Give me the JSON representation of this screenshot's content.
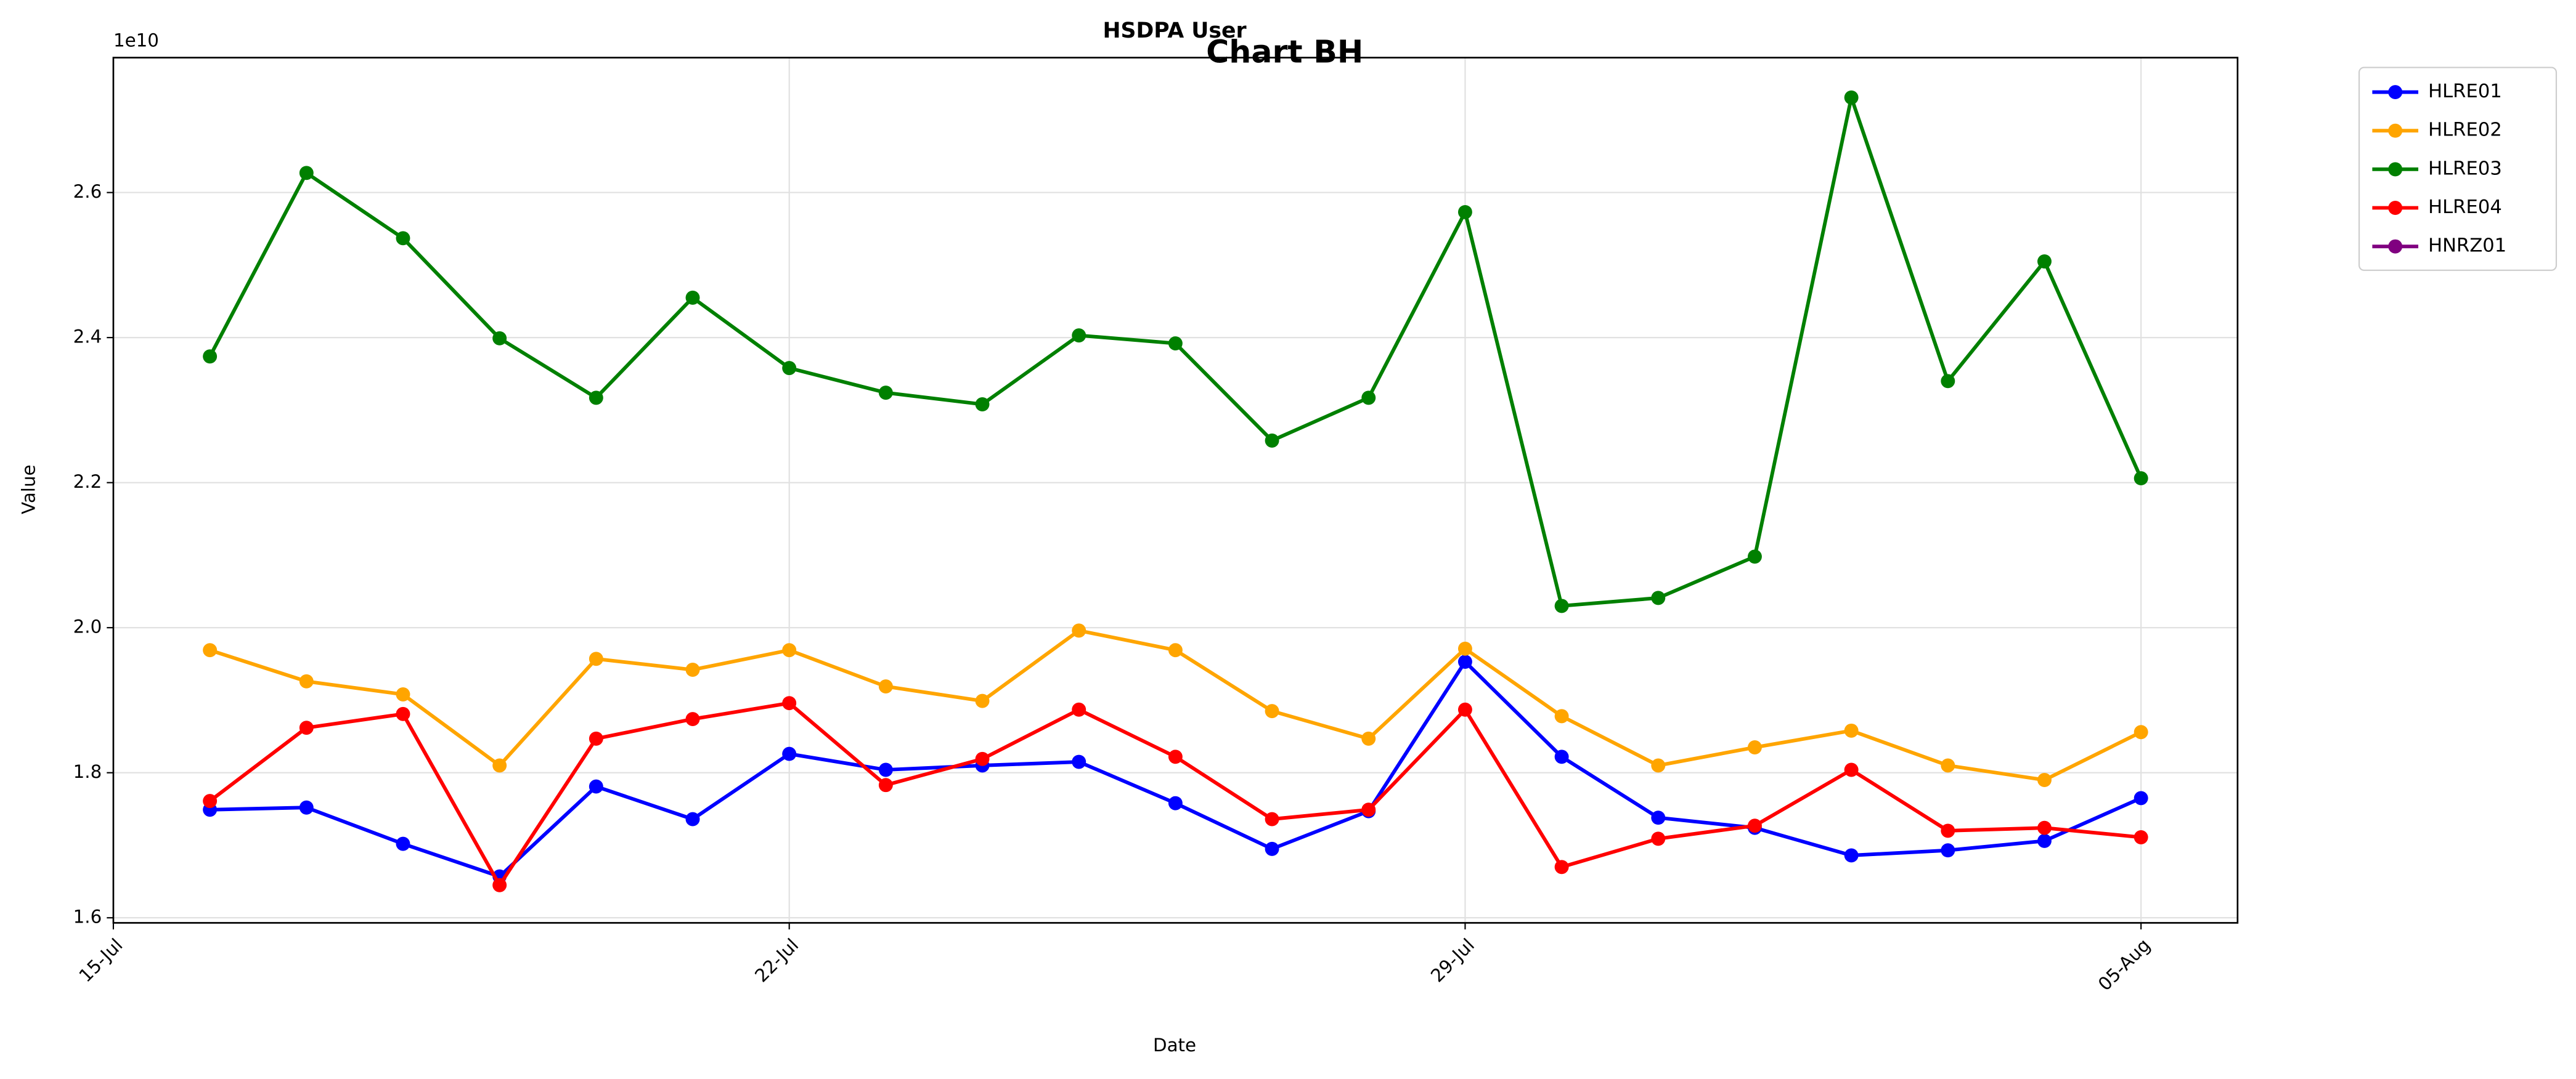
{
  "chart_data": {
    "type": "line",
    "suptitle": "HSDPA User",
    "title": "Chart BH",
    "x_label": "Date",
    "y_label": "Value",
    "y_offset_label": "1e10",
    "x": [
      "16-Jul",
      "17-Jul",
      "18-Jul",
      "19-Jul",
      "20-Jul",
      "21-Jul",
      "22-Jul",
      "23-Jul",
      "24-Jul",
      "25-Jul",
      "26-Jul",
      "27-Jul",
      "28-Jul",
      "29-Jul",
      "30-Jul",
      "31-Jul",
      "01-Aug",
      "02-Aug",
      "03-Aug",
      "04-Aug",
      "05-Aug"
    ],
    "xlim": [
      "15-Jul",
      "06-Aug"
    ],
    "xticks": [
      "15-Jul",
      "22-Jul",
      "29-Jul",
      "05-Aug"
    ],
    "ylim": [
      1.593,
      2.786
    ],
    "yticks": [
      1.6,
      1.8,
      2.0,
      2.2,
      2.4,
      2.6
    ],
    "ytick_labels": [
      "1.6",
      "1.8",
      "2.0",
      "2.2",
      "2.4",
      "2.6"
    ],
    "grid": true,
    "legend": "outside-upper-right",
    "series": [
      {
        "name": "HLRE01",
        "color": "#0000ff",
        "values": [
          1.749,
          1.752,
          1.702,
          1.657,
          1.781,
          1.736,
          1.826,
          1.804,
          1.81,
          1.815,
          1.758,
          1.695,
          1.747,
          1.953,
          1.822,
          1.738,
          1.724,
          1.686,
          1.693,
          1.706,
          1.765
        ]
      },
      {
        "name": "HLRE02",
        "color": "#ffa500",
        "values": [
          1.969,
          1.926,
          1.908,
          1.81,
          1.957,
          1.942,
          1.969,
          1.919,
          1.899,
          1.996,
          1.969,
          1.885,
          1.847,
          1.971,
          1.878,
          1.81,
          1.835,
          1.858,
          1.81,
          1.79,
          1.856
        ]
      },
      {
        "name": "HLRE03",
        "color": "#008000",
        "values": [
          2.374,
          2.627,
          2.537,
          2.399,
          2.317,
          2.455,
          2.358,
          2.324,
          2.308,
          2.403,
          2.392,
          2.258,
          2.317,
          2.573,
          2.03,
          2.041,
          2.098,
          2.731,
          2.34,
          2.505,
          2.206
        ]
      },
      {
        "name": "HLRE04",
        "color": "#ff0000",
        "values": [
          1.761,
          1.862,
          1.881,
          1.645,
          1.847,
          1.874,
          1.896,
          1.783,
          1.819,
          1.887,
          1.822,
          1.736,
          1.749,
          1.887,
          1.67,
          1.709,
          1.727,
          1.804,
          1.72,
          1.724,
          1.711
        ]
      },
      {
        "name": "HNRZ01",
        "color": "#800080",
        "values": [
          null,
          null,
          null,
          null,
          null,
          null,
          null,
          null,
          null,
          null,
          null,
          null,
          null,
          null,
          null,
          null,
          null,
          null,
          null,
          null,
          null
        ]
      }
    ]
  }
}
